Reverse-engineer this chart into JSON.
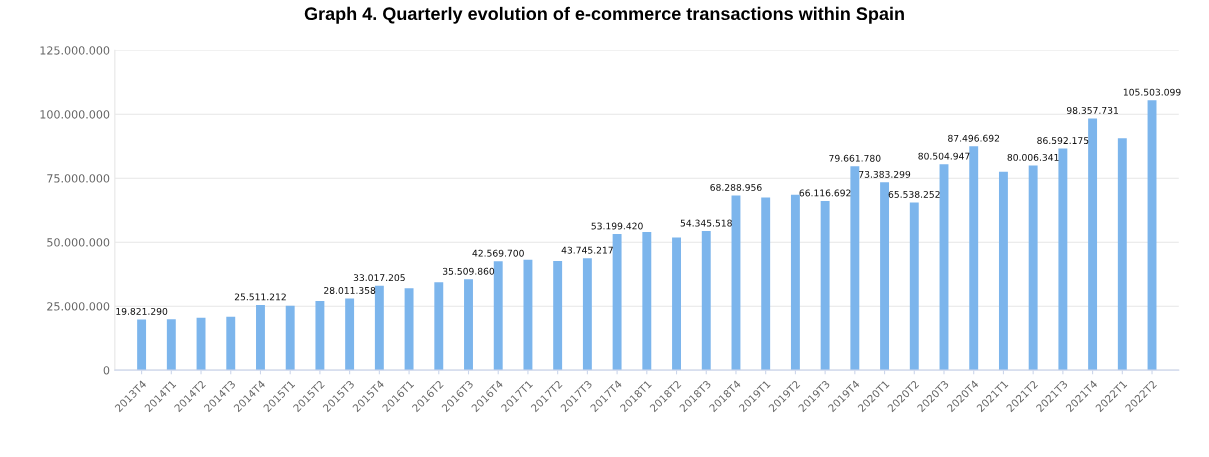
{
  "chart_data": {
    "type": "bar",
    "title": "Graph 4. Quarterly evolution of e-commerce transactions within Spain",
    "categories": [
      "2013T4",
      "2014T1",
      "2014T2",
      "2014T3",
      "2014T4",
      "2015T1",
      "2015T2",
      "2015T3",
      "2015T4",
      "2016T1",
      "2016T2",
      "2016T3",
      "2016T4",
      "2017T1",
      "2017T2",
      "2017T3",
      "2017T4",
      "2018T1",
      "2018T2",
      "2018T3",
      "2018T4",
      "2019T1",
      "2019T2",
      "2019T3",
      "2019T4",
      "2020T1",
      "2020T2",
      "2020T3",
      "2020T4",
      "2021T1",
      "2021T2",
      "2021T3",
      "2021T4",
      "2022T1",
      "2022T2"
    ],
    "values": [
      19821290,
      19900000,
      20500000,
      20900000,
      25511212,
      25200000,
      27000000,
      28011358,
      33017205,
      32000000,
      34400000,
      35509860,
      42569700,
      43100000,
      42700000,
      43745217,
      53199420,
      54000000,
      51800000,
      54345518,
      68288956,
      67500000,
      68500000,
      66116692,
      79661780,
      73383299,
      65538252,
      80504947,
      87496692,
      77500000,
      80006341,
      86592175,
      98357731,
      90600000,
      105503099
    ],
    "value_labels": [
      "19.821.290",
      null,
      null,
      null,
      "25.511.212",
      null,
      null,
      "28.011.358",
      "33.017.205",
      null,
      null,
      "35.509.860",
      "42.569.700",
      null,
      null,
      "43.745.217",
      "53.199.420",
      null,
      null,
      "54.345.518",
      "68.288.956",
      null,
      null,
      "66.116.692",
      "79.661.780",
      "73.383.299",
      "65.538.252",
      "80.504.947",
      "87.496.692",
      null,
      "80.006.341",
      "86.592.175",
      "98.357.731",
      null,
      "105.503.099"
    ],
    "color": "#7cb5ec",
    "ylim": [
      0,
      125000000
    ],
    "yticks": [
      0,
      {
        "value": 25000000,
        "label": "25.000.000"
      },
      {
        "value": 50000000,
        "label": "50.000.000"
      },
      {
        "value": 75000000,
        "label": "75.000.000"
      },
      {
        "value": 100000000,
        "label": "100.000.000"
      },
      {
        "value": 125000000,
        "label": "125.000.000"
      }
    ],
    "grid": "y",
    "legend": false
  }
}
